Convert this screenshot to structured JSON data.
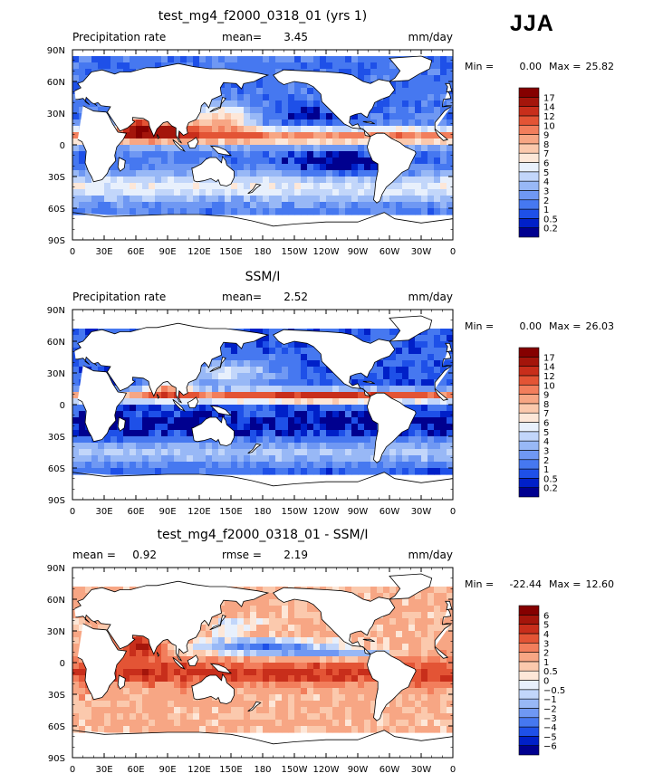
{
  "season": "JJA",
  "chart_data": [
    {
      "type": "heatmap",
      "title": "test_mg4_f2000_0318_01 (yrs 1)",
      "left_label": "Precipitation rate",
      "center_label": "mean=",
      "center_value": "3.45",
      "units": "mm/day",
      "min_label": "Min =",
      "min_value": "0.00",
      "max_label": "Max =",
      "max_value": "25.82",
      "colorbar_levels": [
        "0.2",
        "0.5",
        "1",
        "2",
        "3",
        "4",
        "5",
        "6",
        "7",
        "8",
        "9",
        "10",
        "12",
        "14",
        "17"
      ],
      "colorbar_colors": [
        "#00008f",
        "#0020c8",
        "#1e50e8",
        "#4678f0",
        "#6f98f3",
        "#98b8f6",
        "#c2d6fa",
        "#e8f0fc",
        "#fde7d8",
        "#fbc9ad",
        "#f7a684",
        "#f27e5c",
        "#e35435",
        "#c82e1b",
        "#a4150b",
        "#850000"
      ],
      "x_ticks": [
        "0",
        "30E",
        "60E",
        "90E",
        "120E",
        "150E",
        "180",
        "150W",
        "120W",
        "90W",
        "60W",
        "30W",
        "0"
      ],
      "y_ticks": [
        "90N",
        "60N",
        "30N",
        "0",
        "30S",
        "60S",
        "90S"
      ],
      "ylim": [
        -90,
        90
      ],
      "xlim": [
        0,
        360
      ]
    },
    {
      "type": "heatmap",
      "title": "SSM/I",
      "left_label": "Precipitation rate",
      "center_label": "mean=",
      "center_value": "2.52",
      "units": "mm/day",
      "min_label": "Min =",
      "min_value": "0.00",
      "max_label": "Max =",
      "max_value": "26.03",
      "colorbar_levels": [
        "0.2",
        "0.5",
        "1",
        "2",
        "3",
        "4",
        "5",
        "6",
        "7",
        "8",
        "9",
        "10",
        "12",
        "14",
        "17"
      ],
      "colorbar_colors": [
        "#00008f",
        "#0020c8",
        "#1e50e8",
        "#4678f0",
        "#6f98f3",
        "#98b8f6",
        "#c2d6fa",
        "#e8f0fc",
        "#fde7d8",
        "#fbc9ad",
        "#f7a684",
        "#f27e5c",
        "#e35435",
        "#c82e1b",
        "#a4150b",
        "#850000"
      ],
      "x_ticks": [
        "0",
        "30E",
        "60E",
        "90E",
        "120E",
        "150E",
        "180",
        "150W",
        "120W",
        "90W",
        "60W",
        "30W",
        "0"
      ],
      "y_ticks": [
        "90N",
        "60N",
        "30N",
        "0",
        "30S",
        "60S",
        "90S"
      ],
      "ylim": [
        -90,
        90
      ],
      "xlim": [
        0,
        360
      ]
    },
    {
      "type": "heatmap",
      "title": "test_mg4_f2000_0318_01 - SSM/I",
      "left_label": "mean =",
      "left_value": "0.92",
      "center_label": "rmse =",
      "center_value": "2.19",
      "units": "mm/day",
      "min_label": "Min =",
      "min_value": "-22.44",
      "max_label": "Max =",
      "max_value": "12.60",
      "colorbar_levels": [
        "-6",
        "-5",
        "-4",
        "-3",
        "-2",
        "-1",
        "-0.5",
        "0",
        "0.5",
        "1",
        "2",
        "3",
        "4",
        "5",
        "6"
      ],
      "colorbar_colors": [
        "#00008f",
        "#0020c8",
        "#1e50e8",
        "#4678f0",
        "#6f98f3",
        "#98b8f6",
        "#c2d6fa",
        "#e8f0fc",
        "#fde7d8",
        "#fbc9ad",
        "#f7a684",
        "#f27e5c",
        "#e35435",
        "#c82e1b",
        "#a4150b",
        "#850000"
      ],
      "x_ticks": [
        "0",
        "30E",
        "60E",
        "90E",
        "120E",
        "150E",
        "180",
        "150W",
        "120W",
        "90W",
        "60W",
        "30W",
        "0"
      ],
      "y_ticks": [
        "90N",
        "60N",
        "30N",
        "0",
        "30S",
        "60S",
        "90S"
      ],
      "ylim": [
        -90,
        90
      ],
      "xlim": [
        0,
        360
      ]
    }
  ]
}
